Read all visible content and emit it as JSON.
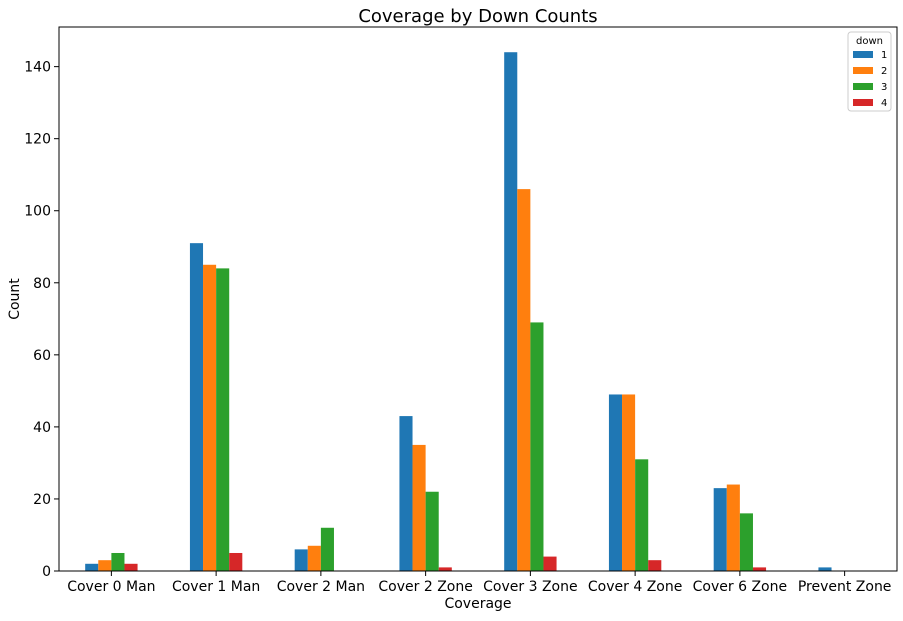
{
  "chart_data": {
    "type": "bar",
    "title": "Coverage by Down Counts",
    "xlabel": "Coverage",
    "ylabel": "Count",
    "ylim": [
      0,
      151
    ],
    "yticks": [
      0,
      20,
      40,
      60,
      80,
      100,
      120,
      140
    ],
    "categories": [
      "Cover 0 Man",
      "Cover 1 Man",
      "Cover 2 Man",
      "Cover 2 Zone",
      "Cover 3 Zone",
      "Cover 4 Zone",
      "Cover 6 Zone",
      "Prevent Zone"
    ],
    "legend": {
      "title": "down",
      "position": "top-right"
    },
    "series": [
      {
        "name": "1",
        "color": "#1f77b4",
        "values": [
          2,
          91,
          6,
          43,
          144,
          49,
          23,
          1
        ]
      },
      {
        "name": "2",
        "color": "#ff7f0e",
        "values": [
          3,
          85,
          7,
          35,
          106,
          49,
          24,
          0
        ]
      },
      {
        "name": "3",
        "color": "#2ca02c",
        "values": [
          5,
          84,
          12,
          22,
          69,
          31,
          16,
          0
        ]
      },
      {
        "name": "4",
        "color": "#d62728",
        "values": [
          2,
          5,
          0,
          1,
          4,
          3,
          1,
          0
        ]
      }
    ]
  }
}
